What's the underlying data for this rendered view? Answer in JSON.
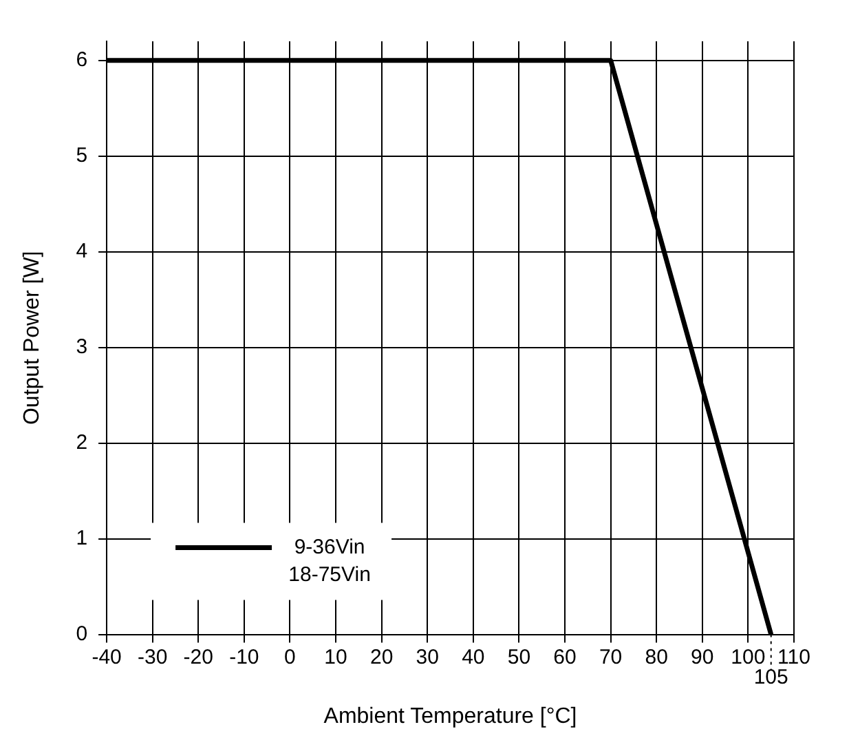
{
  "chart_data": {
    "type": "line",
    "xlabel": "Ambient Temperature [°C]",
    "ylabel": "Output Power [W]",
    "x": [
      -40,
      70,
      105
    ],
    "series": [
      {
        "name": "9-36Vin\n18-75Vin",
        "color": "#000000",
        "values": [
          6,
          6,
          0
        ]
      }
    ],
    "xlim": [
      -40,
      110
    ],
    "xticks": [
      -40,
      -30,
      -20,
      -10,
      0,
      10,
      20,
      30,
      40,
      50,
      60,
      70,
      80,
      90,
      100,
      110
    ],
    "ylim": [
      0,
      6.2
    ],
    "yticks": [
      0,
      1,
      2,
      3,
      4,
      5,
      6
    ],
    "ref_lines": [
      {
        "axis": "x",
        "value": 105,
        "label": "105",
        "line_style": "dotted",
        "color": "#000000"
      }
    ],
    "grid": true,
    "legend": "bottom left",
    "marker": "none",
    "line_style": "solid"
  }
}
